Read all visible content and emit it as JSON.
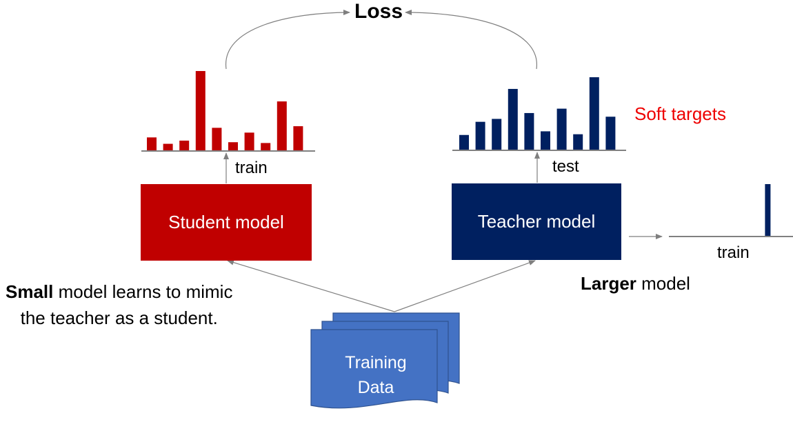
{
  "loss": "Loss",
  "student": {
    "label": "Student model",
    "train_label": "train",
    "color": "#c00000",
    "output_bars": [
      0.17,
      0.09,
      0.13,
      1.0,
      0.29,
      0.11,
      0.23,
      0.1,
      0.62,
      0.31
    ]
  },
  "teacher": {
    "label": "Teacher model",
    "test_label": "test",
    "train_label": "train",
    "color": "#002060",
    "soft_bars": [
      0.21,
      0.39,
      0.43,
      0.84,
      0.51,
      0.26,
      0.57,
      0.22,
      1.0,
      0.46
    ],
    "hard_bars": [
      0.0,
      0.0,
      0.0,
      0.0,
      0.0,
      0.0,
      0.0,
      0.0,
      0.0,
      1.0
    ]
  },
  "soft_targets_label": "Soft targets",
  "larger_caption": {
    "bold": "Larger",
    "rest": " model"
  },
  "small_caption": {
    "bold": "Small",
    "line1_rest": " model learns to mimic",
    "line2": "the teacher as a student."
  },
  "training_data": {
    "line1": "Training",
    "line2": "Data",
    "color": "#4472c4"
  }
}
